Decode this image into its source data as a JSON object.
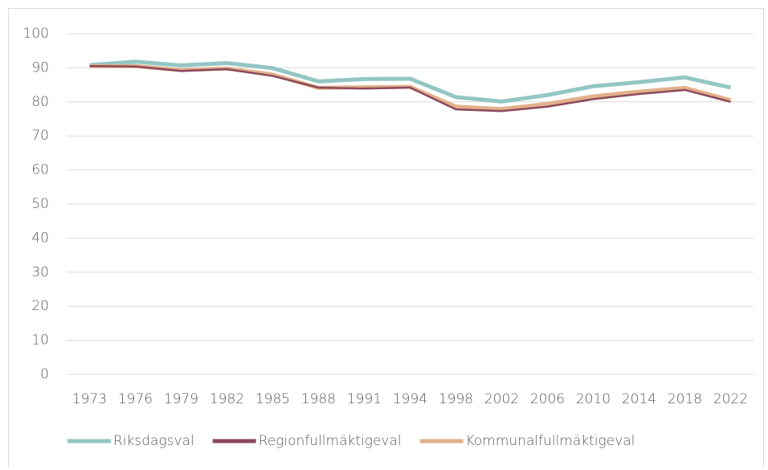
{
  "chart_data": {
    "type": "line",
    "categories": [
      "1973",
      "1976",
      "1979",
      "1982",
      "1985",
      "1988",
      "1991",
      "1994",
      "1998",
      "2002",
      "2006",
      "2010",
      "2014",
      "2018",
      "2022"
    ],
    "series": [
      {
        "name": "Riksdagsval",
        "color": "#93c6c4",
        "values": [
          90.8,
          91.8,
          90.7,
          91.4,
          89.9,
          86.0,
          86.7,
          86.8,
          81.4,
          80.1,
          82.0,
          84.6,
          85.8,
          87.2,
          84.2
        ]
      },
      {
        "name": "Regionfullmäktigeval",
        "color": "#8b4a5e",
        "values": [
          90.5,
          90.4,
          89.1,
          89.6,
          87.6,
          84.2,
          83.9,
          84.2,
          77.8,
          77.3,
          78.6,
          80.8,
          82.3,
          83.5,
          80.0
        ]
      },
      {
        "name": "Kommunalfullmäktigeval",
        "color": "#e3b08a",
        "values": [
          90.5,
          90.5,
          89.3,
          89.8,
          88.0,
          84.1,
          84.3,
          84.4,
          78.6,
          77.9,
          79.4,
          81.6,
          83.0,
          84.1,
          80.5
        ]
      }
    ],
    "ylim": [
      0,
      100
    ],
    "yticks": [
      0,
      10,
      20,
      30,
      40,
      50,
      60,
      70,
      80,
      90,
      100
    ],
    "grid": true,
    "legend": "bottom"
  }
}
